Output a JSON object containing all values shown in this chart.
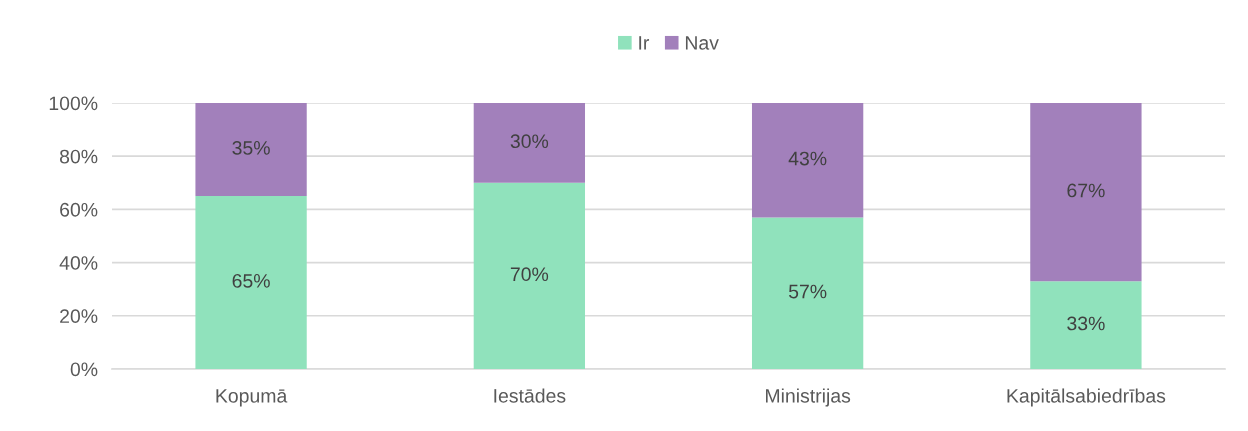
{
  "chart_data": {
    "type": "bar",
    "stacked": true,
    "categories": [
      "Kopumā",
      "Iestādes",
      "Ministrijas",
      "Kapitālsabiedrības"
    ],
    "series": [
      {
        "name": "Ir",
        "color": "#90e2bc",
        "values": [
          65,
          70,
          57,
          33
        ],
        "value_labels": [
          "65%",
          "70%",
          "57%",
          "33%"
        ]
      },
      {
        "name": "Nav",
        "color": "#a280bb",
        "values": [
          35,
          30,
          43,
          67
        ],
        "value_labels": [
          "35%",
          "30%",
          "43%",
          "67%"
        ]
      }
    ],
    "ylim": [
      0,
      100
    ],
    "yticks": [
      {
        "value": 0,
        "label": "0%"
      },
      {
        "value": 20,
        "label": "20%"
      },
      {
        "value": 40,
        "label": "40%"
      },
      {
        "value": 60,
        "label": "60%"
      },
      {
        "value": 80,
        "label": "80%"
      },
      {
        "value": 100,
        "label": "100%"
      }
    ],
    "grid": "y",
    "legend": "top"
  }
}
